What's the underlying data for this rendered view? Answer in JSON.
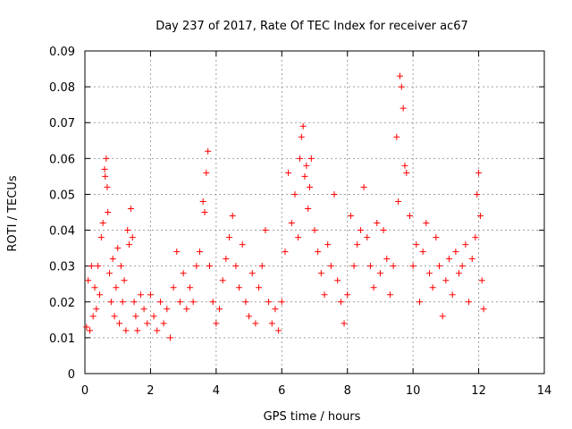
{
  "chart_data": {
    "type": "scatter",
    "title": "Day 237 of 2017, Rate Of TEC Index for receiver ac67",
    "xlabel": "GPS time / hours",
    "ylabel": "ROTI / TECUs",
    "xlim": [
      0,
      14
    ],
    "ylim": [
      0,
      0.09
    ],
    "xticks": [
      0,
      2,
      4,
      6,
      8,
      10,
      12,
      14
    ],
    "xtick_labels": [
      "0",
      "2",
      "4",
      "6",
      "8",
      "10",
      "12",
      "14"
    ],
    "yticks": [
      0,
      0.01,
      0.02,
      0.03,
      0.04,
      0.05,
      0.06,
      0.07,
      0.08,
      0.09
    ],
    "ytick_labels": [
      "0",
      "0.01",
      "0.02",
      "0.03",
      "0.04",
      "0.05",
      "0.06",
      "0.07",
      "0.08",
      "0.09"
    ],
    "grid": true,
    "legend": "none",
    "marker": "+",
    "marker_color": "#ff0000",
    "series": [
      {
        "x": [
          0.05,
          0.1,
          0.15,
          0.2,
          0.25,
          0.3,
          0.35,
          0.4,
          0.45,
          0.5,
          0.55,
          0.6,
          0.62,
          0.65,
          0.68,
          0.7,
          0.75,
          0.8,
          0.85,
          0.9,
          0.95,
          1.0,
          1.05,
          1.1,
          1.15,
          1.2,
          1.25,
          1.3,
          1.35,
          1.4,
          1.45,
          1.5,
          1.55,
          1.6,
          1.7,
          1.8,
          1.9,
          2.0,
          2.1,
          2.2,
          2.3,
          2.4,
          2.5,
          2.6,
          2.7,
          2.8,
          2.9,
          3.0,
          3.1,
          3.2,
          3.3,
          3.4,
          3.5,
          3.6,
          3.65,
          3.7,
          3.75,
          3.8,
          3.9,
          4.0,
          4.1,
          4.2,
          4.3,
          4.4,
          4.5,
          4.6,
          4.7,
          4.8,
          4.9,
          5.0,
          5.1,
          5.2,
          5.3,
          5.4,
          5.5,
          5.6,
          5.7,
          5.8,
          5.9,
          6.0,
          6.1,
          6.2,
          6.3,
          6.4,
          6.5,
          6.55,
          6.6,
          6.65,
          6.7,
          6.75,
          6.8,
          6.85,
          6.9,
          7.0,
          7.1,
          7.2,
          7.3,
          7.4,
          7.5,
          7.6,
          7.7,
          7.8,
          7.9,
          8.0,
          8.1,
          8.2,
          8.3,
          8.4,
          8.5,
          8.6,
          8.7,
          8.8,
          8.9,
          9.0,
          9.1,
          9.2,
          9.3,
          9.4,
          9.5,
          9.55,
          9.6,
          9.65,
          9.7,
          9.75,
          9.8,
          9.9,
          10.0,
          10.1,
          10.2,
          10.3,
          10.4,
          10.5,
          10.6,
          10.7,
          10.8,
          10.9,
          11.0,
          11.1,
          11.2,
          11.3,
          11.4,
          11.5,
          11.6,
          11.7,
          11.8,
          11.9,
          11.95,
          12.0,
          12.05,
          12.1,
          12.15
        ],
        "y": [
          0.013,
          0.026,
          0.012,
          0.03,
          0.016,
          0.024,
          0.018,
          0.03,
          0.022,
          0.038,
          0.042,
          0.057,
          0.055,
          0.06,
          0.052,
          0.045,
          0.028,
          0.02,
          0.032,
          0.016,
          0.024,
          0.035,
          0.014,
          0.03,
          0.02,
          0.026,
          0.012,
          0.04,
          0.036,
          0.046,
          0.038,
          0.02,
          0.016,
          0.012,
          0.022,
          0.018,
          0.014,
          0.022,
          0.016,
          0.012,
          0.02,
          0.014,
          0.018,
          0.01,
          0.024,
          0.034,
          0.02,
          0.028,
          0.018,
          0.024,
          0.02,
          0.03,
          0.034,
          0.048,
          0.045,
          0.056,
          0.062,
          0.03,
          0.02,
          0.014,
          0.018,
          0.026,
          0.032,
          0.038,
          0.044,
          0.03,
          0.024,
          0.036,
          0.02,
          0.016,
          0.028,
          0.014,
          0.024,
          0.03,
          0.04,
          0.02,
          0.014,
          0.018,
          0.012,
          0.02,
          0.034,
          0.056,
          0.042,
          0.05,
          0.038,
          0.06,
          0.066,
          0.069,
          0.055,
          0.058,
          0.046,
          0.052,
          0.06,
          0.04,
          0.034,
          0.028,
          0.022,
          0.036,
          0.03,
          0.05,
          0.026,
          0.02,
          0.014,
          0.022,
          0.044,
          0.03,
          0.036,
          0.04,
          0.052,
          0.038,
          0.03,
          0.024,
          0.042,
          0.028,
          0.04,
          0.032,
          0.022,
          0.03,
          0.066,
          0.048,
          0.083,
          0.08,
          0.074,
          0.058,
          0.056,
          0.044,
          0.03,
          0.036,
          0.02,
          0.034,
          0.042,
          0.028,
          0.024,
          0.038,
          0.03,
          0.016,
          0.026,
          0.032,
          0.022,
          0.034,
          0.028,
          0.03,
          0.036,
          0.02,
          0.032,
          0.038,
          0.05,
          0.056,
          0.044,
          0.026,
          0.018
        ]
      }
    ]
  }
}
